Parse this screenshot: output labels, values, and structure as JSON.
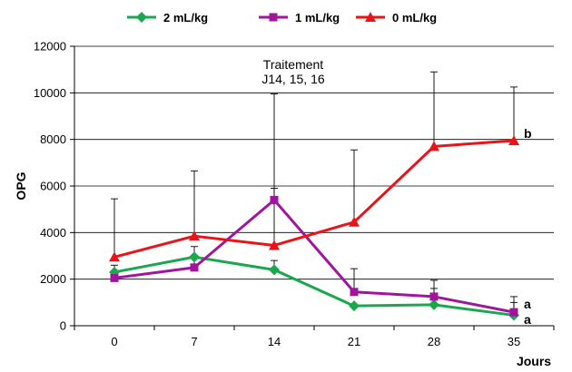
{
  "chart_data": {
    "type": "line",
    "title": "",
    "xlabel": "Jours",
    "ylabel": "OPG",
    "x": [
      0,
      7,
      14,
      21,
      28,
      35
    ],
    "x_tick_labels": [
      "0",
      "7",
      "14",
      "21",
      "28",
      "35"
    ],
    "ylim": [
      0,
      12000
    ],
    "y_ticks": [
      0,
      2000,
      4000,
      6000,
      8000,
      10000,
      12000
    ],
    "y_tick_labels": [
      "0",
      "2000",
      "4000",
      "6000",
      "8000",
      "10000",
      "12000"
    ],
    "grid": "horizontal",
    "legend_position": "top",
    "series": [
      {
        "name": "2 mL/kg",
        "color": "#1aa84e",
        "marker": "diamond",
        "values": [
          2300,
          2950,
          2400,
          850,
          900,
          450
        ],
        "error_upper": [
          2600,
          3400,
          2800,
          900,
          1600,
          1000
        ]
      },
      {
        "name": "1 mL/kg",
        "color": "#a0159e",
        "marker": "square",
        "values": [
          2050,
          2500,
          5400,
          1450,
          1250,
          580
        ],
        "error_upper": [
          2200,
          3000,
          5900,
          2450,
          1950,
          1250
        ]
      },
      {
        "name": "0 mL/kg",
        "color": "#e8141a",
        "marker": "triangle",
        "values": [
          2950,
          3850,
          3450,
          4450,
          7700,
          7950
        ],
        "error_upper": [
          5450,
          6650,
          9950,
          7550,
          10900,
          10250
        ]
      }
    ],
    "annotations": {
      "treatment_line1": "Traitement",
      "treatment_line2": "J14, 15, 16",
      "sig_b": "b",
      "sig_a1": "a",
      "sig_a2": "a"
    }
  }
}
